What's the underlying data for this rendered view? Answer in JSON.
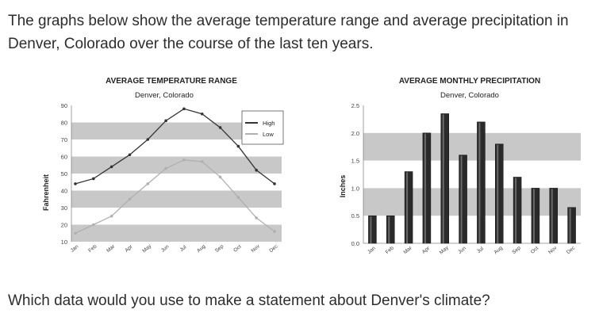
{
  "intro_text": "The graphs below show the average temperature range and average precipitation in Denver, Colorado over the course of the last ten years.",
  "question_text": "Which data would you use to make a statement about Denver's climate?",
  "colors": {
    "band": "#c8c8c8",
    "high_line": "#333333",
    "low_line": "#b0b0b0",
    "bar": "#2a2a2a"
  },
  "chart_data": [
    {
      "type": "line",
      "title": "AVERAGE TEMPERATURE RANGE",
      "subtitle": "Denver, Colorado",
      "xlabel": "",
      "ylabel": "Fahrenheit",
      "categories": [
        "Jan",
        "Feb",
        "Mar",
        "Apr",
        "May",
        "Jun",
        "Jul",
        "Aug",
        "Sep",
        "Oct",
        "Nov",
        "Dec"
      ],
      "series": [
        {
          "name": "High",
          "values": [
            44,
            47,
            54,
            61,
            70,
            81,
            88,
            85,
            77,
            66,
            52,
            44
          ]
        },
        {
          "name": "Low",
          "values": [
            15,
            20,
            25,
            35,
            44,
            53,
            58,
            57,
            48,
            36,
            24,
            16
          ]
        }
      ],
      "yticks": [
        10,
        20,
        30,
        40,
        50,
        60,
        70,
        80,
        90
      ],
      "ylim": [
        10,
        90
      ],
      "grid": "alternating horizontal bands",
      "legend": "top-right"
    },
    {
      "type": "bar",
      "title": "AVERAGE MONTHLY PRECIPITATION",
      "subtitle": "Denver, Colorado",
      "xlabel": "",
      "ylabel": "Inches",
      "categories": [
        "Jan",
        "Feb",
        "Mar",
        "Apr",
        "May",
        "Jun",
        "Jul",
        "Aug",
        "Sep",
        "Oct",
        "Nov",
        "Dec"
      ],
      "values": [
        0.5,
        0.5,
        1.3,
        2.0,
        2.35,
        1.6,
        2.2,
        1.8,
        1.2,
        1.0,
        1.0,
        0.65
      ],
      "yticks": [
        "0.0",
        "0.5",
        "1.0",
        "1.5",
        "2.0",
        "2.5"
      ],
      "ylim": [
        0,
        2.5
      ],
      "grid": "alternating horizontal bands"
    }
  ]
}
